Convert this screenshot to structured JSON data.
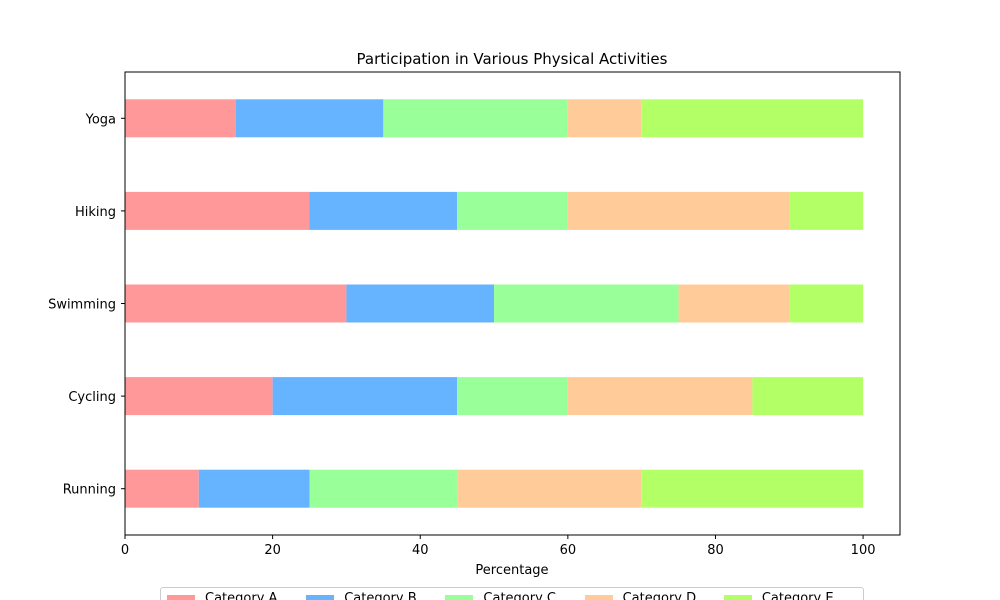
{
  "chart_data": {
    "type": "bar",
    "orientation": "horizontal",
    "stacked": true,
    "title": "Participation in Various Physical Activities",
    "xlabel": "Percentage",
    "ylabel": "",
    "xlim": [
      0,
      105
    ],
    "xticks": [
      0,
      20,
      40,
      60,
      80,
      100
    ],
    "categories": [
      "Running",
      "Cycling",
      "Swimming",
      "Hiking",
      "Yoga"
    ],
    "series": [
      {
        "name": "Category A",
        "color": "#ff9999",
        "values": [
          10,
          20,
          30,
          25,
          15
        ]
      },
      {
        "name": "Category B",
        "color": "#66b3ff",
        "values": [
          15,
          25,
          20,
          20,
          20
        ]
      },
      {
        "name": "Category C",
        "color": "#99ff99",
        "values": [
          20,
          15,
          25,
          15,
          25
        ]
      },
      {
        "name": "Category D",
        "color": "#ffcc99",
        "values": [
          25,
          25,
          15,
          30,
          10
        ]
      },
      {
        "name": "Category E",
        "color": "#b3ff66",
        "values": [
          30,
          15,
          10,
          10,
          30
        ]
      }
    ],
    "grid": false,
    "legend_position": "bottom-center"
  }
}
